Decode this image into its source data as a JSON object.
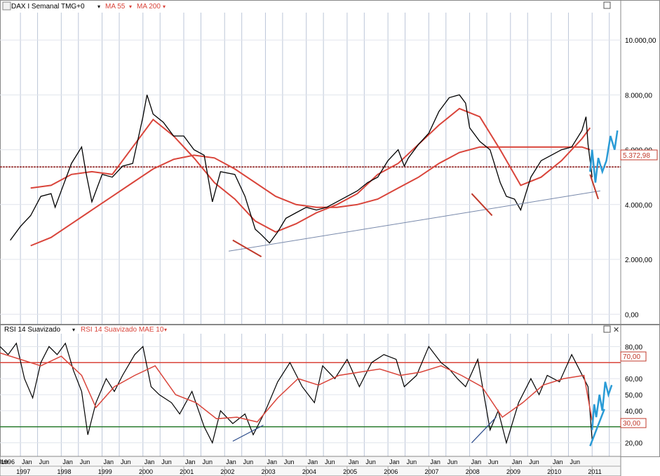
{
  "price_panel": {
    "header": {
      "symbol": "DAX I Semanal TMG+0",
      "ma_fast": "MA 55",
      "ma_slow": "MA 200"
    },
    "current_price_label": "5.372,98"
  },
  "rsi_panel": {
    "header": {
      "rsi": "RSI 14 Suavizado",
      "rsi_ma": "RSI 14 Suavizado MAE 10"
    },
    "level_high_label": "70,00",
    "level_low_label": "30,00"
  },
  "colors": {
    "price": "#000000",
    "ma": "#d9443a",
    "projection": "#2a9bd6",
    "trendline": "#7788aa",
    "grid": "#bcc6d8",
    "label_red": "#c0392b",
    "rsi_low_line": "#2e7d32"
  },
  "chart_data": [
    {
      "type": "line",
      "title": "DAX I Semanal TMG+0",
      "y_ticks": [
        "10.000,00",
        "8.000,00",
        "6.000,00",
        "4.000,00",
        "2.000,00",
        "0,00"
      ],
      "y_tick_values": [
        10000,
        8000,
        6000,
        4000,
        2000,
        0
      ],
      "ylim": [
        -300,
        11000
      ],
      "x_range": [
        1996.5,
        2011.7
      ],
      "horizontal_line": 5372.98,
      "series": [
        {
          "name": "DAX I Semanal TMG+0",
          "x": [
            1996.75,
            1997.0,
            1997.25,
            1997.5,
            1997.75,
            1997.85,
            1998.0,
            1998.25,
            1998.5,
            1998.6,
            1998.75,
            1999.0,
            1999.25,
            1999.5,
            1999.75,
            2000.0,
            2000.1,
            2000.25,
            2000.5,
            2000.75,
            2001.0,
            2001.25,
            2001.5,
            2001.7,
            2001.9,
            2002.25,
            2002.5,
            2002.75,
            2002.9,
            2003.1,
            2003.3,
            2003.5,
            2003.75,
            2004.0,
            2004.25,
            2004.5,
            2004.75,
            2005.0,
            2005.25,
            2005.5,
            2005.75,
            2006.0,
            2006.25,
            2006.4,
            2006.5,
            2006.75,
            2007.0,
            2007.25,
            2007.5,
            2007.75,
            2007.9,
            2008.0,
            2008.25,
            2008.5,
            2008.75,
            2008.9,
            2009.1,
            2009.25,
            2009.5,
            2009.75,
            2010.0,
            2010.25,
            2010.5,
            2010.75,
            2010.85,
            2010.9,
            2011.0
          ],
          "y": [
            2700,
            3200,
            3600,
            4300,
            4400,
            3900,
            4500,
            5500,
            6100,
            5200,
            4100,
            5100,
            5000,
            5400,
            5500,
            7200,
            8000,
            7300,
            7000,
            6500,
            6500,
            6000,
            5800,
            4100,
            5200,
            5100,
            4300,
            3100,
            2900,
            2600,
            3000,
            3500,
            3700,
            3900,
            3800,
            3900,
            4100,
            4300,
            4500,
            4800,
            5000,
            5600,
            6000,
            5400,
            5700,
            6200,
            6600,
            7400,
            7900,
            8000,
            7700,
            6800,
            6300,
            6000,
            4800,
            4300,
            4200,
            3800,
            5000,
            5600,
            5800,
            6000,
            6100,
            6700,
            7200,
            6200,
            5000
          ]
        },
        {
          "name": "MA 55",
          "x": [
            1997.25,
            1997.75,
            1998.25,
            1998.75,
            1999.25,
            1999.75,
            2000.25,
            2000.75,
            2001.25,
            2001.75,
            2002.25,
            2002.75,
            2003.25,
            2003.75,
            2004.25,
            2004.75,
            2005.25,
            2005.75,
            2006.25,
            2006.75,
            2007.25,
            2007.75,
            2008.25,
            2008.75,
            2009.25,
            2009.75,
            2010.25,
            2010.75,
            2010.95
          ],
          "y": [
            4600,
            4700,
            5100,
            5200,
            5100,
            6100,
            7100,
            6500,
            5700,
            4800,
            4200,
            3400,
            3000,
            3300,
            3700,
            4000,
            4400,
            5100,
            5500,
            6200,
            6900,
            7500,
            7200,
            6000,
            4700,
            5000,
            5600,
            6400,
            6800
          ]
        },
        {
          "name": "MA 200",
          "x": [
            1997.25,
            1997.75,
            1998.25,
            1998.75,
            1999.25,
            1999.75,
            2000.25,
            2000.75,
            2001.25,
            2001.75,
            2002.25,
            2002.75,
            2003.25,
            2003.75,
            2004.25,
            2004.75,
            2005.25,
            2005.75,
            2006.25,
            2006.75,
            2007.25,
            2007.75,
            2008.25,
            2008.75,
            2009.25,
            2009.75,
            2010.25,
            2010.75,
            2010.95
          ],
          "y": [
            2500,
            2800,
            3300,
            3800,
            4300,
            4800,
            5300,
            5650,
            5800,
            5700,
            5300,
            4800,
            4300,
            4000,
            3900,
            3900,
            4000,
            4200,
            4600,
            5000,
            5500,
            5900,
            6100,
            6100,
            6100,
            6100,
            6100,
            6100,
            6000
          ]
        },
        {
          "name": "",
          "x": [
            2010.95,
            2011.0,
            2011.08,
            2011.15,
            2011.25,
            2011.35,
            2011.45,
            2011.55,
            2011.62
          ],
          "y": [
            5200,
            6000,
            4800,
            5700,
            5200,
            5600,
            6500,
            6000,
            6700
          ]
        }
      ],
      "trendlines": [
        {
          "x": [
            2002.1,
            2011.2
          ],
          "y": [
            2300,
            4500
          ]
        },
        {
          "x": [
            2002.2,
            2002.9
          ],
          "y": [
            2700,
            2100
          ]
        },
        {
          "x": [
            2008.05,
            2008.55
          ],
          "y": [
            4400,
            3600
          ]
        },
        {
          "x": [
            2010.95,
            2011.15
          ],
          "y": [
            5100,
            4200
          ]
        }
      ]
    },
    {
      "type": "line",
      "title": "RSI 14 Suavizado",
      "y_ticks": [
        "80,00",
        "60,00",
        "50,00",
        "40,00",
        "20,00"
      ],
      "y_tick_values": [
        80,
        60,
        50,
        40,
        20
      ],
      "ylim": [
        12,
        88
      ],
      "x_range": [
        1996.5,
        2011.7
      ],
      "levels": [
        70,
        30
      ],
      "x_labels": {
        "month_ticks": [
          "1996",
          "Jun",
          "Jan",
          "Jun",
          "Jan",
          "Jun",
          "Jan",
          "Jun",
          "Jan",
          "Jun",
          "Jan",
          "Jun",
          "Jan",
          "Jun",
          "Jan",
          "Jun",
          "Jan",
          "Jun",
          "Jan",
          "Jun",
          "Jan",
          "Jun",
          "Jan",
          "Jun",
          "Jan",
          "Jun",
          "Jan",
          "Jun",
          "Jan",
          "Jun"
        ],
        "years": [
          "1997",
          "1998",
          "1999",
          "2000",
          "2001",
          "2002",
          "2003",
          "2004",
          "2005",
          "2006",
          "2007",
          "2008",
          "2009",
          "2010",
          "2011"
        ]
      },
      "series": [
        {
          "name": "RSI 14 Suavizado",
          "x": [
            1996.5,
            1996.7,
            1996.9,
            1997.1,
            1997.3,
            1997.5,
            1997.7,
            1997.9,
            1998.1,
            1998.3,
            1998.5,
            1998.65,
            1998.85,
            1999.1,
            1999.3,
            1999.5,
            1999.8,
            2000.0,
            2000.2,
            2000.4,
            2000.7,
            2000.9,
            2001.2,
            2001.5,
            2001.7,
            2001.9,
            2002.2,
            2002.5,
            2002.7,
            2003.0,
            2003.3,
            2003.6,
            2003.9,
            2004.2,
            2004.4,
            2004.7,
            2005.0,
            2005.3,
            2005.6,
            2005.9,
            2006.2,
            2006.4,
            2006.7,
            2007.0,
            2007.3,
            2007.5,
            2007.7,
            2007.9,
            2008.2,
            2008.5,
            2008.7,
            2008.9,
            2009.2,
            2009.5,
            2009.7,
            2009.9,
            2010.2,
            2010.5,
            2010.7,
            2010.9,
            2011.0
          ],
          "y": [
            80,
            75,
            82,
            60,
            48,
            70,
            80,
            75,
            82,
            65,
            52,
            25,
            45,
            60,
            52,
            62,
            75,
            80,
            55,
            50,
            45,
            38,
            52,
            30,
            20,
            40,
            32,
            38,
            25,
            40,
            58,
            70,
            55,
            45,
            68,
            60,
            72,
            55,
            70,
            75,
            72,
            55,
            62,
            80,
            70,
            66,
            60,
            55,
            72,
            28,
            40,
            20,
            45,
            60,
            50,
            62,
            58,
            75,
            65,
            55,
            22
          ]
        },
        {
          "name": "RSI 14 Suavizado MAE 10",
          "x": [
            1996.5,
            1997.0,
            1997.5,
            1998.0,
            1998.5,
            1998.85,
            1999.3,
            1999.8,
            2000.3,
            2000.8,
            2001.3,
            2001.8,
            2002.3,
            2002.8,
            2003.3,
            2003.8,
            2004.3,
            2004.8,
            2005.3,
            2005.8,
            2006.3,
            2006.8,
            2007.3,
            2007.8,
            2008.3,
            2008.8,
            2009.3,
            2009.8,
            2010.3,
            2010.8,
            2011.0
          ],
          "y": [
            76,
            72,
            68,
            74,
            62,
            42,
            55,
            62,
            68,
            50,
            45,
            35,
            36,
            33,
            48,
            60,
            56,
            62,
            64,
            66,
            62,
            64,
            68,
            62,
            55,
            36,
            45,
            56,
            60,
            62,
            34
          ]
        },
        {
          "name": "",
          "x": [
            2011.0,
            2011.05,
            2011.1,
            2011.18,
            2011.25,
            2011.32,
            2011.4,
            2011.48
          ],
          "y": [
            28,
            44,
            36,
            50,
            40,
            58,
            50,
            56
          ]
        }
      ],
      "trendlines": [
        {
          "x": [
            2002.2,
            2002.95
          ],
          "y": [
            21,
            31
          ]
        },
        {
          "x": [
            2008.05,
            2008.65
          ],
          "y": [
            20,
            36
          ]
        },
        {
          "x": [
            2010.95,
            2011.3
          ],
          "y": [
            18,
            41
          ]
        }
      ]
    }
  ]
}
